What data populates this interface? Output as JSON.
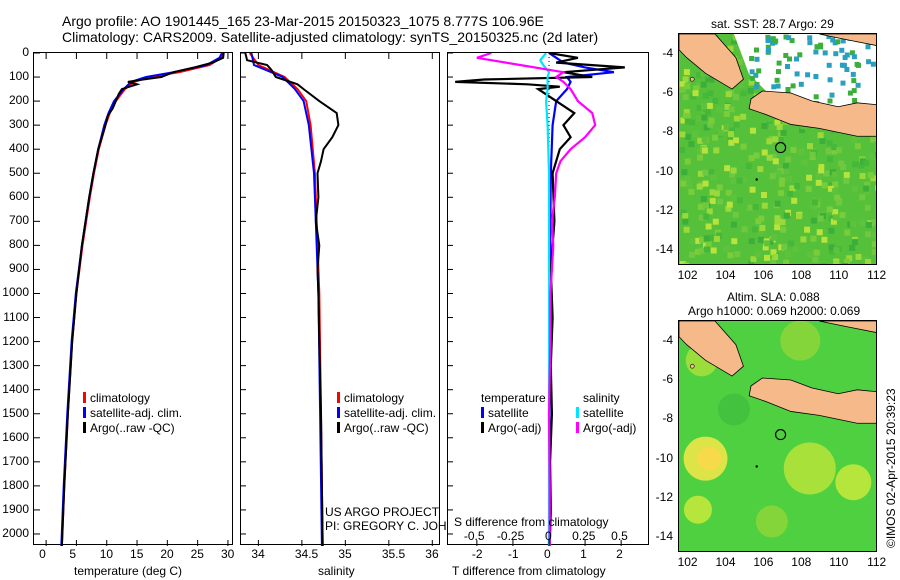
{
  "header": {
    "line1": "Argo profile: AO 1901445_165 23-Mar-2015 20150323_1075 8.777S 106.96E",
    "line2": "Climatology: CARS2009. Satellite-adjusted climatology: synTS_20150325.nc (2d later)"
  },
  "colors": {
    "climatology": "#ff0000",
    "satellite": "#0000ff",
    "argo": "#000000",
    "salinity_sat": "#00e5ff",
    "salinity_argo": "#ff00ff",
    "land": "#f5b98a",
    "sea_green": "#3fbf3f",
    "sea_yellow": "#d8ee30"
  },
  "chart_data": [
    {
      "type": "line",
      "name": "temperature-profile",
      "xlabel": "temperature (deg C)",
      "ylabel": "",
      "xlim": [
        -2,
        31
      ],
      "ylim": [
        2050,
        0
      ],
      "xticks": [
        0,
        5,
        10,
        15,
        20,
        25,
        30
      ],
      "yticks": [
        0,
        100,
        200,
        300,
        400,
        500,
        600,
        700,
        800,
        900,
        1000,
        1100,
        1200,
        1300,
        1400,
        1500,
        1600,
        1700,
        1800,
        1900,
        2000
      ],
      "legend": [
        "climatology",
        "satellite-adj. clim.",
        "Argo(..raw -QC)"
      ],
      "series": [
        {
          "name": "climatology",
          "depth": [
            0,
            20,
            50,
            80,
            100,
            120,
            150,
            200,
            250,
            300,
            400,
            500,
            600,
            800,
            1000,
            1200,
            1500,
            1800,
            2050
          ],
          "values": [
            29.2,
            28.8,
            27,
            22,
            17,
            14.5,
            13,
            11.5,
            10.5,
            9.8,
            8.7,
            7.9,
            7.2,
            6,
            5,
            4.3,
            3.6,
            3,
            2.6
          ]
        },
        {
          "name": "satellite-adj. clim.",
          "depth": [
            0,
            20,
            50,
            80,
            100,
            120,
            150,
            200,
            250,
            300,
            400,
            500,
            600,
            800,
            1000,
            1200,
            1500,
            1800,
            2050
          ],
          "values": [
            29.0,
            28.6,
            26.5,
            21,
            16.5,
            14,
            12.8,
            11.2,
            10.3,
            9.6,
            8.6,
            7.8,
            7.1,
            5.9,
            4.9,
            4.2,
            3.5,
            2.9,
            2.5
          ]
        },
        {
          "name": "Argo(..raw -QC)",
          "depth": [
            0,
            20,
            40,
            60,
            80,
            100,
            110,
            120,
            130,
            150,
            170,
            200,
            230,
            260,
            300,
            400,
            500,
            600,
            800,
            1000,
            1200,
            1500,
            1800,
            2050
          ],
          "values": [
            29.3,
            29.2,
            27.5,
            24.5,
            21,
            19,
            16,
            13.5,
            15,
            12.5,
            12,
            11.5,
            11,
            10.2,
            9.8,
            8.6,
            7.8,
            7.1,
            5.9,
            5,
            4.3,
            3.6,
            3,
            2.6
          ]
        }
      ]
    },
    {
      "type": "line",
      "name": "salinity-profile",
      "xlabel": "salinity",
      "xlim": [
        33.8,
        36.1
      ],
      "ylim": [
        2050,
        0
      ],
      "xticks": [
        34,
        34.5,
        35,
        35.5,
        36
      ],
      "legend": [
        "climatology",
        "satellite-adj. clim.",
        "Argo(..raw -QC)"
      ],
      "series": [
        {
          "name": "climatology",
          "depth": [
            0,
            50,
            100,
            150,
            200,
            300,
            500,
            700,
            1000,
            1500,
            2050
          ],
          "values": [
            33.9,
            34.0,
            34.3,
            34.45,
            34.55,
            34.6,
            34.65,
            34.67,
            34.7,
            34.72,
            34.74
          ]
        },
        {
          "name": "satellite-adj. clim.",
          "depth": [
            0,
            50,
            100,
            150,
            200,
            300,
            500,
            700,
            1000,
            1500,
            2050
          ],
          "values": [
            33.92,
            33.95,
            34.28,
            34.42,
            34.52,
            34.58,
            34.64,
            34.66,
            34.69,
            34.71,
            34.73
          ]
        },
        {
          "name": "Argo(..raw -QC)",
          "depth": [
            0,
            30,
            50,
            70,
            100,
            130,
            150,
            200,
            250,
            300,
            350,
            400,
            450,
            500,
            600,
            700,
            800,
            900,
            1000,
            1200,
            1500,
            1800,
            2050
          ],
          "values": [
            33.85,
            33.87,
            34.1,
            34.15,
            34.2,
            34.45,
            34.52,
            34.7,
            34.9,
            34.92,
            34.85,
            34.75,
            34.72,
            34.68,
            34.69,
            34.66,
            34.7,
            34.68,
            34.69,
            34.7,
            34.72,
            34.73,
            34.74
          ]
        }
      ],
      "annotation": [
        "US ARGO PROJECT",
        "PI: GREGORY C. JOHNSON"
      ]
    },
    {
      "type": "line",
      "name": "difference-profile",
      "xlabel": "T difference from climatology",
      "xlabel_top": "S difference from climatology",
      "xlim": [
        -2.8,
        2.8
      ],
      "ylim": [
        2050,
        0
      ],
      "xticks_T": [
        -2,
        -1,
        0,
        1,
        2
      ],
      "xticks_S": [
        "-0.5",
        "-0.25",
        "0",
        "0.25",
        "0.5"
      ],
      "legend_temperature_title": "temperature",
      "legend_salinity_title": "salinity",
      "legend_temperature": [
        "satellite",
        "Argo(-adj)"
      ],
      "legend_salinity": [
        "satellite",
        "Argo(-adj)"
      ],
      "series": [
        {
          "name": "T satellite",
          "depth": [
            0,
            40,
            60,
            80,
            100,
            120,
            150,
            200,
            300,
            500,
            1000,
            1500,
            2050
          ],
          "values": [
            0,
            0.4,
            1,
            1.8,
            0.5,
            0.6,
            0.5,
            0.2,
            0.1,
            0.05,
            0.02,
            0.01,
            0
          ]
        },
        {
          "name": "T Argo(-adj)",
          "depth": [
            0,
            20,
            40,
            60,
            80,
            100,
            110,
            120,
            130,
            140,
            150,
            200,
            250,
            300,
            350,
            400,
            500,
            700,
            900,
            1100,
            1300,
            1500,
            1700,
            1900,
            2050
          ],
          "values": [
            0,
            0.8,
            0.2,
            2.1,
            0.4,
            1.2,
            -1.8,
            -2.6,
            -0.6,
            0.3,
            -0.3,
            0.2,
            0.7,
            0.4,
            0.6,
            0.3,
            0.1,
            0.15,
            0.05,
            0.1,
            0.05,
            0.08,
            0.03,
            0.05,
            0.02
          ]
        },
        {
          "name": "S satellite",
          "depth": [
            0,
            30,
            50,
            80,
            100,
            150,
            200,
            300,
            500,
            1000,
            1500,
            2050
          ],
          "values": [
            -0.02,
            -0.06,
            -0.04,
            0,
            -0.01,
            -0.01,
            -0.02,
            -0.01,
            0,
            0,
            0,
            0
          ]
        },
        {
          "name": "S Argo(-adj)",
          "depth": [
            0,
            20,
            50,
            80,
            100,
            120,
            150,
            200,
            250,
            300,
            350,
            400,
            450,
            500,
            600,
            700,
            800,
            900,
            1000,
            1200,
            1500,
            1800,
            2050
          ],
          "values": [
            -0.4,
            -0.5,
            -0.2,
            0.1,
            0.05,
            0.1,
            0.15,
            0.2,
            0.3,
            0.32,
            0.25,
            0.15,
            0.08,
            0.05,
            0.04,
            0.02,
            0.03,
            0.02,
            0.01,
            0.01,
            0,
            0.005,
            0.005
          ]
        }
      ]
    }
  ],
  "maps": {
    "sst": {
      "title": "sat. SST: 28.7 Argo: 29",
      "xticks": [
        "102",
        "104",
        "106",
        "108",
        "110",
        "112"
      ],
      "yticks": [
        "-4",
        "-6",
        "-8",
        "-10",
        "-12",
        "-14"
      ]
    },
    "sla": {
      "title1": "Altim. SLA: 0.088",
      "title2": "Argo h1000: 0.069 h2000: 0.069",
      "xticks": [
        "102",
        "104",
        "106",
        "108",
        "110",
        "112"
      ],
      "yticks": [
        "-4",
        "-6",
        "-8",
        "-10",
        "-12",
        "-14"
      ]
    },
    "float_position": {
      "lon": 106.96,
      "lat": -8.777
    }
  },
  "footer": {
    "credit": "©IMOS 02-Apr-2015 20:39:23"
  }
}
